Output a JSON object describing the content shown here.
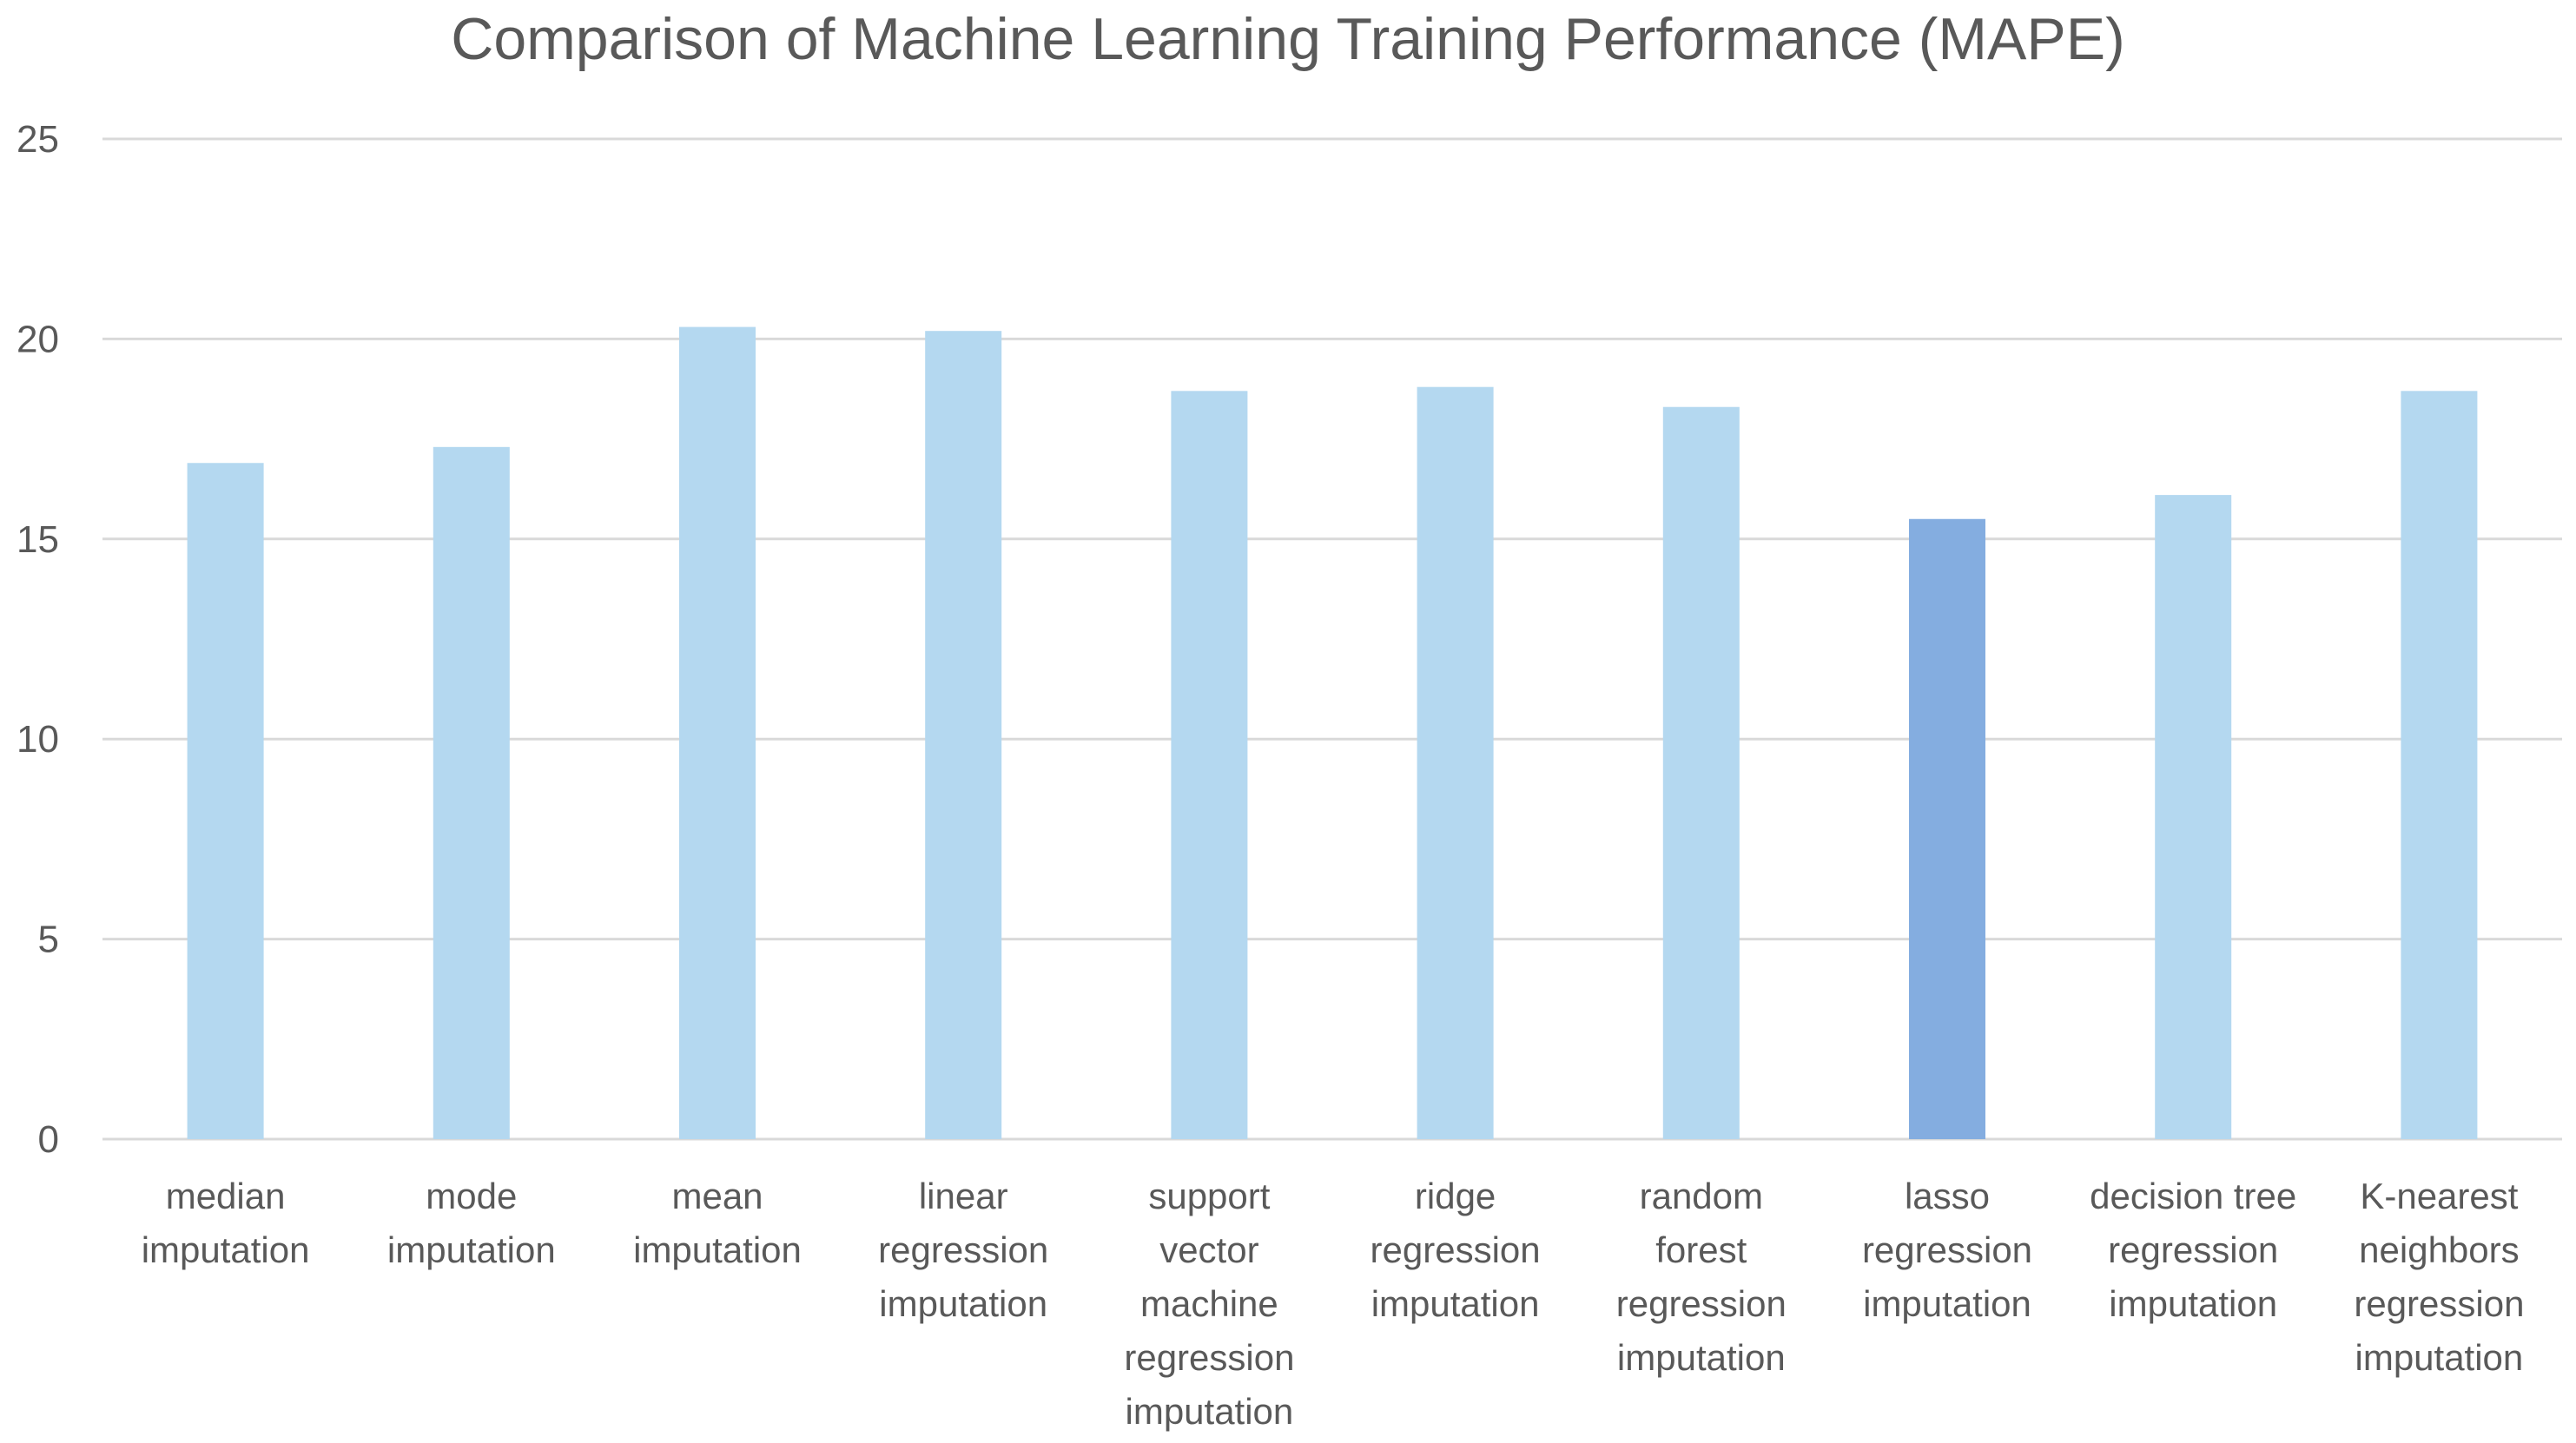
{
  "chart_data": {
    "type": "bar",
    "title": "Comparison of Machine Learning Training Performance (MAPE)",
    "xlabel": "",
    "ylabel": "",
    "ylim": [
      0,
      25
    ],
    "yticks": [
      "0",
      "5",
      "10",
      "15",
      "20",
      "25"
    ],
    "grid": true,
    "legend": "none",
    "categories": [
      [
        "median",
        "imputation"
      ],
      [
        "mode",
        "imputation"
      ],
      [
        "mean",
        "imputation"
      ],
      [
        "linear",
        "regression",
        "imputation"
      ],
      [
        "support",
        "vector",
        "machine",
        "regression",
        "imputation"
      ],
      [
        "ridge",
        "regression",
        "imputation"
      ],
      [
        "random",
        "forest",
        "regression",
        "imputation"
      ],
      [
        "lasso",
        "regression",
        "imputation"
      ],
      [
        "decision tree",
        "regression",
        "imputation"
      ],
      [
        "K-nearest",
        "neighbors",
        "regression",
        "imputation"
      ]
    ],
    "values": [
      16.9,
      17.3,
      20.3,
      20.2,
      18.7,
      18.8,
      18.3,
      15.5,
      16.1,
      18.7
    ],
    "highlight_index": 7,
    "colors": {
      "bar": "#b4d8f0",
      "highlight_bar": "#84ade0",
      "grid": "#d9d9d9",
      "text": "#595959"
    }
  }
}
